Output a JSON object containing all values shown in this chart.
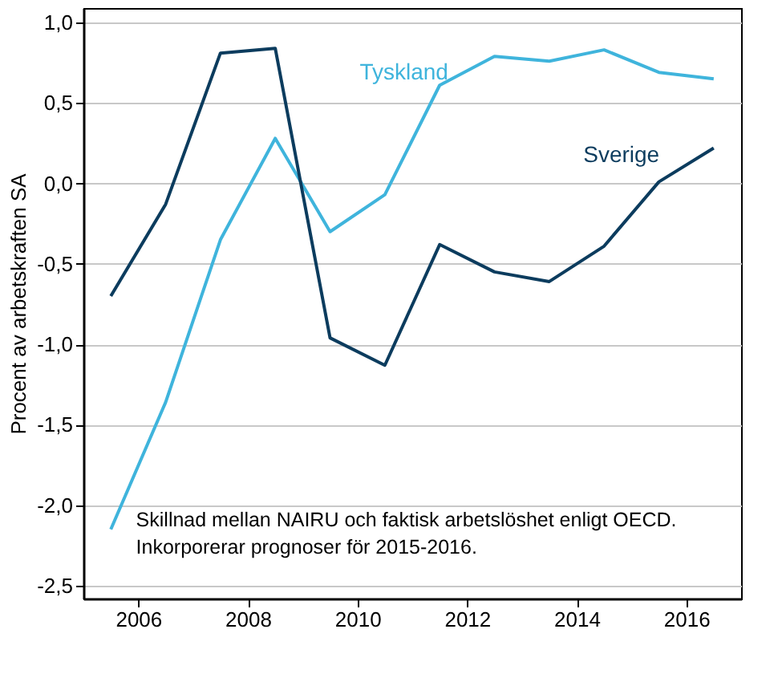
{
  "chart_data": {
    "type": "line",
    "ylabel": "Procent av arbetskraften SA",
    "x": [
      2005.5,
      2006.5,
      2007.5,
      2008.5,
      2009.5,
      2010.5,
      2011.5,
      2012.5,
      2013.5,
      2014.5,
      2015.5,
      2016.5
    ],
    "series": [
      {
        "name": "Tyskland",
        "color": "#3fb4dc",
        "values": [
          -2.15,
          -1.36,
          -0.35,
          0.28,
          -0.3,
          -0.07,
          0.61,
          0.79,
          0.76,
          0.83,
          0.69,
          0.65
        ]
      },
      {
        "name": "Sverige",
        "color": "#0c3c5e",
        "values": [
          -0.7,
          -0.13,
          0.81,
          0.84,
          -0.96,
          -1.13,
          -0.38,
          -0.55,
          -0.61,
          -0.39,
          0.01,
          0.22
        ]
      }
    ],
    "xlim": [
      2005,
      2017
    ],
    "xticks": [
      2006,
      2008,
      2010,
      2012,
      2014,
      2016
    ],
    "ylim": [
      -2.58,
      1.09
    ],
    "yticks": [
      {
        "value": -2.5,
        "label": "-2,5"
      },
      {
        "value": -2,
        "label": "-2,0"
      },
      {
        "value": -1.5,
        "label": "-1,5"
      },
      {
        "value": -1,
        "label": "-1,0"
      },
      {
        "value": -0.5,
        "label": "-0,5"
      },
      {
        "value": 0,
        "label": "0,0"
      },
      {
        "value": 0.5,
        "label": "0,5"
      },
      {
        "value": 1,
        "label": "1,0"
      }
    ],
    "grid": "y",
    "marker": "none",
    "line_style": "solid",
    "annotations": [
      "Skillnad mellan NAIRU och faktisk arbetslöshet enligt OECD.\nInkorporerar prognoser för 2015-2016."
    ]
  }
}
